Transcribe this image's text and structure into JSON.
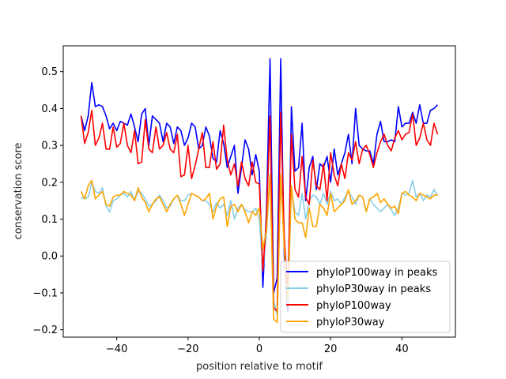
{
  "chart_data": {
    "type": "line",
    "title": "",
    "xlabel": "position relative to motif",
    "ylabel": "conservation score",
    "xlim": [
      -55,
      55
    ],
    "ylim": [
      -0.22,
      0.57
    ],
    "xticks": [
      -40,
      -20,
      0,
      20,
      40
    ],
    "xtick_labels": [
      "−40",
      "−20",
      "0",
      "20",
      "40"
    ],
    "yticks": [
      -0.2,
      -0.1,
      0.0,
      0.1,
      0.2,
      0.3,
      0.4,
      0.5
    ],
    "ytick_labels": [
      "−0.2",
      "−0.1",
      "0.0",
      "0.1",
      "0.2",
      "0.3",
      "0.4",
      "0.5"
    ],
    "grid": false,
    "legend_position": "lower-right",
    "x_start": -50,
    "x_step": 1,
    "series": [
      {
        "name": "phyloP100way in peaks",
        "color": "#0000ff",
        "values": [
          0.38,
          0.34,
          0.38,
          0.47,
          0.405,
          0.41,
          0.405,
          0.38,
          0.345,
          0.36,
          0.34,
          0.365,
          0.36,
          0.355,
          0.385,
          0.35,
          0.31,
          0.385,
          0.4,
          0.3,
          0.38,
          0.37,
          0.36,
          0.31,
          0.36,
          0.35,
          0.305,
          0.35,
          0.34,
          0.3,
          0.32,
          0.36,
          0.35,
          0.29,
          0.3,
          0.35,
          0.325,
          0.265,
          0.255,
          0.34,
          0.305,
          0.24,
          0.27,
          0.3,
          0.17,
          0.24,
          0.315,
          0.29,
          0.22,
          0.275,
          0.23,
          -0.085,
          0.12,
          0.535,
          -0.1,
          -0.06,
          0.535,
          0.0,
          -0.15,
          0.405,
          0.23,
          0.24,
          0.36,
          0.15,
          0.24,
          0.27,
          0.18,
          0.25,
          0.24,
          0.27,
          0.2,
          0.29,
          0.22,
          0.25,
          0.28,
          0.33,
          0.25,
          0.4,
          0.3,
          0.29,
          0.285,
          0.285,
          0.25,
          0.33,
          0.365,
          0.31,
          0.31,
          0.315,
          0.31,
          0.405,
          0.35,
          0.36,
          0.36,
          0.39,
          0.36,
          0.41,
          0.36,
          0.36,
          0.395,
          0.4,
          0.41
        ]
      },
      {
        "name": "phyloP30way in peaks",
        "color": "#87ceeb",
        "values": [
          0.16,
          0.155,
          0.16,
          0.2,
          0.175,
          0.17,
          0.185,
          0.135,
          0.12,
          0.15,
          0.155,
          0.165,
          0.17,
          0.16,
          0.175,
          0.15,
          0.175,
          0.17,
          0.155,
          0.135,
          0.14,
          0.15,
          0.165,
          0.15,
          0.13,
          0.135,
          0.155,
          0.165,
          0.15,
          0.15,
          0.165,
          0.17,
          0.165,
          0.16,
          0.15,
          0.15,
          0.14,
          0.12,
          0.145,
          0.13,
          0.14,
          0.11,
          0.15,
          0.1,
          0.13,
          0.14,
          0.125,
          0.12,
          0.12,
          0.13,
          0.1,
          -0.04,
          0.06,
          0.22,
          -0.12,
          -0.16,
          0.22,
          0.02,
          -0.13,
          0.18,
          0.12,
          0.11,
          0.17,
          0.1,
          0.15,
          0.165,
          0.16,
          0.14,
          0.17,
          0.14,
          0.175,
          0.15,
          0.155,
          0.14,
          0.16,
          0.175,
          0.16,
          0.14,
          0.165,
          0.16,
          0.12,
          0.155,
          0.14,
          0.13,
          0.12,
          0.13,
          0.14,
          0.125,
          0.11,
          0.13,
          0.17,
          0.165,
          0.17,
          0.205,
          0.16,
          0.17,
          0.15,
          0.165,
          0.16,
          0.18,
          0.165
        ]
      },
      {
        "name": "phyloP100way",
        "color": "#ff0000",
        "values": [
          0.38,
          0.305,
          0.335,
          0.395,
          0.3,
          0.32,
          0.36,
          0.29,
          0.29,
          0.35,
          0.295,
          0.305,
          0.36,
          0.3,
          0.28,
          0.34,
          0.25,
          0.255,
          0.37,
          0.29,
          0.28,
          0.35,
          0.29,
          0.3,
          0.335,
          0.29,
          0.28,
          0.33,
          0.215,
          0.22,
          0.3,
          0.21,
          0.245,
          0.29,
          0.335,
          0.24,
          0.24,
          0.31,
          0.235,
          0.25,
          0.355,
          0.26,
          0.22,
          0.25,
          0.19,
          0.255,
          0.21,
          0.19,
          0.255,
          0.2,
          0.195,
          -0.04,
          0.1,
          0.38,
          -0.14,
          -0.15,
          0.39,
          0.05,
          -0.1,
          0.33,
          0.18,
          0.16,
          0.27,
          0.16,
          0.14,
          0.26,
          0.19,
          0.18,
          0.25,
          0.15,
          0.28,
          0.22,
          0.19,
          0.25,
          0.21,
          0.28,
          0.26,
          0.31,
          0.25,
          0.29,
          0.3,
          0.275,
          0.24,
          0.28,
          0.31,
          0.33,
          0.3,
          0.285,
          0.32,
          0.34,
          0.315,
          0.33,
          0.335,
          0.385,
          0.3,
          0.32,
          0.36,
          0.315,
          0.3,
          0.36,
          0.33
        ]
      },
      {
        "name": "phyloP30way",
        "color": "#ffa500",
        "values": [
          0.175,
          0.155,
          0.19,
          0.205,
          0.155,
          0.165,
          0.175,
          0.14,
          0.135,
          0.16,
          0.165,
          0.165,
          0.175,
          0.17,
          0.165,
          0.15,
          0.185,
          0.16,
          0.145,
          0.12,
          0.14,
          0.155,
          0.16,
          0.14,
          0.12,
          0.14,
          0.155,
          0.165,
          0.14,
          0.11,
          0.14,
          0.17,
          0.165,
          0.16,
          0.15,
          0.155,
          0.17,
          0.1,
          0.135,
          0.155,
          0.16,
          0.08,
          0.135,
          0.14,
          0.12,
          0.14,
          0.12,
          0.09,
          0.12,
          0.11,
          0.13,
          0.02,
          0.07,
          0.22,
          -0.17,
          -0.18,
          0.22,
          0.02,
          -0.12,
          0.19,
          0.1,
          0.09,
          0.09,
          0.05,
          0.13,
          0.08,
          0.08,
          0.14,
          0.13,
          0.11,
          0.17,
          0.12,
          0.13,
          0.14,
          0.15,
          0.18,
          0.14,
          0.15,
          0.165,
          0.16,
          0.12,
          0.155,
          0.16,
          0.17,
          0.145,
          0.155,
          0.14,
          0.13,
          0.135,
          0.115,
          0.17,
          0.175,
          0.165,
          0.16,
          0.15,
          0.17,
          0.165,
          0.16,
          0.155,
          0.165,
          0.165
        ]
      }
    ]
  }
}
